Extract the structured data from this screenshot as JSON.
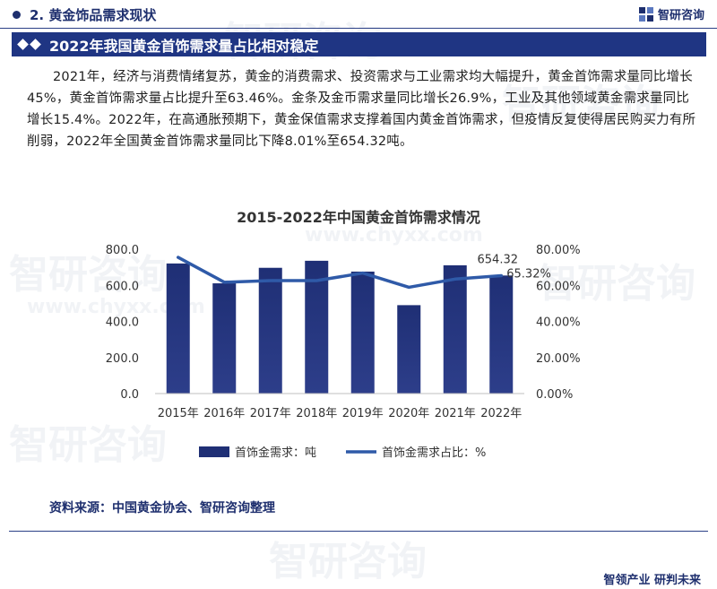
{
  "header": {
    "section_title": "2. 黄金饰品需求现状",
    "brand": "智研咨询"
  },
  "banner": {
    "title": "2022年我国黄金首饰需求量占比相对稳定"
  },
  "paragraph": "2021年，经济与消费情绪复苏，黄金的消费需求、投资需求与工业需求均大幅提升，黄金首饰需求量同比增长45%，黄金首饰需求量占比提升至63.46%。金条及金币需求量同比增长26.9%，工业及其他领域黄金需求量同比增长15.4%。2022年，在高通胀预期下，黄金保值需求支撑着国内黄金首饰需求，但疫情反复使得居民购买力有所削弱，2022年全国黄金首饰需求量同比下降8.01%至654.32吨。",
  "watermark": {
    "cn": "智研咨询",
    "en": "www.chyxx.com"
  },
  "chart_data": {
    "type": "bar",
    "title": "2015-2022年中国黄金首饰需求情况",
    "categories": [
      "2015年",
      "2016年",
      "2017年",
      "2018年",
      "2019年",
      "2020年",
      "2021年",
      "2022年"
    ],
    "series": [
      {
        "name": "首饰金需求：吨",
        "type": "bar",
        "axis": "left",
        "values": [
          721,
          611,
          697,
          736,
          676,
          490,
          711,
          654.32
        ],
        "color": "#1f2f75"
      },
      {
        "name": "首饰金需求占比：%",
        "type": "line",
        "axis": "right",
        "values": [
          75.5,
          61.7,
          62.6,
          62.6,
          66.8,
          58.9,
          63.46,
          65.32
        ],
        "color": "#2f5aa8"
      }
    ],
    "y_left": {
      "min": 0,
      "max": 800,
      "ticks": [
        "0.0",
        "200.0",
        "400.0",
        "600.0",
        "800.0"
      ]
    },
    "y_right": {
      "min": 0,
      "max": 80,
      "ticks": [
        "0.00%",
        "20.00%",
        "40.00%",
        "60.00%",
        "80.00%"
      ]
    },
    "annotations": [
      {
        "series": 0,
        "index": 7,
        "text": "654.32"
      },
      {
        "series": 1,
        "index": 7,
        "text": "65.32%"
      }
    ],
    "legend_position": "bottom",
    "grid": false
  },
  "source": "资料来源：中国黄金协会、智研咨询整理",
  "footer": {
    "slogan": "智领产业  研判未来"
  }
}
